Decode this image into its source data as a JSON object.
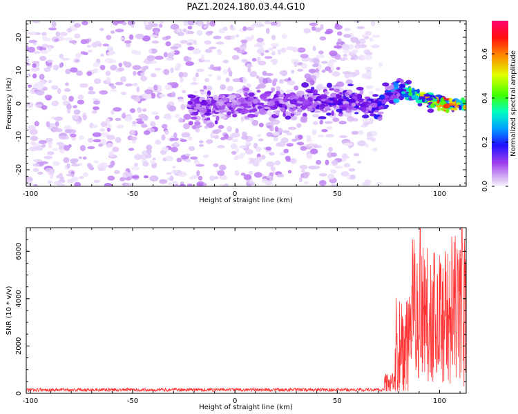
{
  "title": "PAZ1.2024.180.03.44.G10",
  "chart_data": [
    {
      "type": "heatmap",
      "title": "PAZ1.2024.180.03.44.G10",
      "xlabel": "Height of straight line (km)",
      "ylabel": "Frequency (Hz)",
      "xlim": [
        -102,
        113
      ],
      "ylim": [
        -25,
        25
      ],
      "xticks": [
        -100,
        -50,
        0,
        50,
        100
      ],
      "yticks": [
        -20,
        -10,
        0,
        10,
        20
      ],
      "colorbar": {
        "label": "Normalized spectral amplitude",
        "range": [
          0,
          0.75
        ],
        "ticks": [
          "0.0",
          "0.2",
          "0.4",
          "0.6"
        ],
        "tick_values": [
          0,
          0.2,
          0.4,
          0.6
        ],
        "colormap": [
          "#f7f2ff",
          "#d7b8f5",
          "#a040f0",
          "#6000e0",
          "#1010ff",
          "#00c0ff",
          "#00ffa0",
          "#40ff00",
          "#e0ff00",
          "#ffa000",
          "#ff2000",
          "#ff0060"
        ]
      },
      "band": [
        {
          "x": -22,
          "y": -1,
          "amp": 0.18
        },
        {
          "x": 0,
          "y": -0.5,
          "amp": 0.14
        },
        {
          "x": 30,
          "y": 0,
          "amp": 0.18
        },
        {
          "x": 55,
          "y": 1,
          "amp": 0.2
        },
        {
          "x": 70,
          "y": -1,
          "amp": 0.22
        },
        {
          "x": 80,
          "y": 4.5,
          "amp": 0.3
        },
        {
          "x": 90,
          "y": 2,
          "amp": 0.45
        },
        {
          "x": 100,
          "y": 0,
          "amp": 0.6
        },
        {
          "x": 113,
          "y": -0.5,
          "amp": 0.5
        }
      ],
      "noise_region": {
        "x": [
          -102,
          72
        ],
        "amp": 0.08
      }
    },
    {
      "type": "line",
      "xlabel": "Height of straight line (km)",
      "ylabel": "SNR (10 * v/v)",
      "xlim": [
        -102,
        113
      ],
      "ylim": [
        0,
        7000
      ],
      "xticks": [
        -100,
        -50,
        0,
        50,
        100
      ],
      "yticks": [
        0,
        2000,
        4000,
        6000
      ],
      "color": "#ff3333",
      "segments": [
        {
          "x": [
            -102,
            73
          ],
          "mean": 150,
          "spread": 120
        },
        {
          "x": [
            73,
            78
          ],
          "mean": 400,
          "spread": 500
        },
        {
          "x": [
            78,
            85
          ],
          "mean": 1700,
          "spread": 2600
        },
        {
          "x": [
            85,
            95
          ],
          "mean": 3500,
          "spread": 3500
        },
        {
          "x": [
            95,
            105
          ],
          "mean": 3300,
          "spread": 3200
        },
        {
          "x": [
            105,
            113
          ],
          "mean": 3500,
          "spread": 3600
        }
      ],
      "peaks": [
        {
          "x": 90.5,
          "y": 7000
        },
        {
          "x": 111,
          "y": 7000
        }
      ]
    }
  ]
}
